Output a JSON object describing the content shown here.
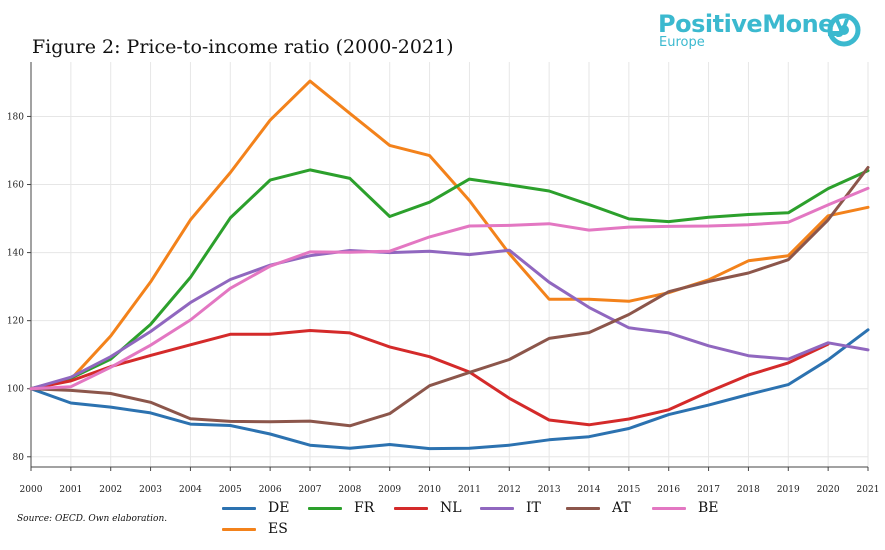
{
  "title": "Figure 2: Price-to-income ratio (2000-2021)",
  "logo": {
    "main": "PositiveMoney",
    "sub": "Europe",
    "color": "#3bb9cf"
  },
  "source": "Source: OECD. Own elaboration.",
  "chart_data": {
    "type": "line",
    "title": "Figure 2: Price-to-income ratio (2000-2021)",
    "xlabel": "",
    "ylabel": "",
    "x": [
      2000,
      2001,
      2002,
      2003,
      2004,
      2005,
      2006,
      2007,
      2008,
      2009,
      2010,
      2011,
      2012,
      2013,
      2014,
      2015,
      2016,
      2017,
      2018,
      2019,
      2020,
      2021
    ],
    "xlim": [
      2000,
      2021
    ],
    "ylim": [
      77,
      196
    ],
    "yticks": [
      80,
      100,
      120,
      140,
      160,
      180
    ],
    "grid": true,
    "legend_position": "bottom",
    "series": [
      {
        "name": "DE",
        "color": "#2c72b0",
        "values": [
          100,
          95.8,
          94.6,
          92.9,
          89.6,
          89.2,
          86.7,
          83.4,
          82.5,
          83.6,
          82.4,
          82.5,
          83.4,
          85.0,
          85.9,
          88.3,
          92.4,
          95.2,
          98.3,
          101.2,
          108.5,
          117.3
        ]
      },
      {
        "name": "ES",
        "color": "#f3821b",
        "values": [
          100,
          102.8,
          115.5,
          131.4,
          149.6,
          163.5,
          178.9,
          190.4,
          180.9,
          171.5,
          168.5,
          155.3,
          139.7,
          126.3,
          126.3,
          125.7,
          128.2,
          132.0,
          137.6,
          139.1,
          150.8,
          153.3
        ]
      },
      {
        "name": "FR",
        "color": "#2ca02c",
        "values": [
          100,
          103.1,
          108.7,
          118.9,
          132.7,
          150.2,
          161.3,
          164.3,
          161.8,
          150.6,
          154.8,
          161.6,
          159.9,
          158.1,
          154.1,
          149.9,
          149.1,
          150.4,
          151.2,
          151.7,
          158.8,
          164.1
        ]
      },
      {
        "name": "NL",
        "color": "#d42a2a",
        "values": [
          100,
          102.3,
          106.5,
          109.8,
          112.9,
          116.0,
          116.0,
          117.1,
          116.4,
          112.3,
          109.4,
          104.9,
          97.2,
          90.8,
          89.4,
          91.1,
          93.8,
          99.1,
          104.0,
          107.6,
          113.1,
          null
        ]
      },
      {
        "name": "IT",
        "color": "#9067bf",
        "values": [
          100,
          103.4,
          109.4,
          116.8,
          125.3,
          132.1,
          136.3,
          139.1,
          140.6,
          140.0,
          140.4,
          139.4,
          140.7,
          131.3,
          123.9,
          117.9,
          116.4,
          112.6,
          109.7,
          108.7,
          113.5,
          111.4
        ]
      },
      {
        "name": "AT",
        "color": "#8c564b",
        "values": [
          100,
          99.5,
          98.6,
          96.0,
          91.2,
          90.4,
          90.3,
          90.5,
          89.1,
          92.7,
          100.9,
          104.8,
          108.6,
          114.8,
          116.5,
          121.8,
          128.5,
          131.5,
          134.0,
          137.9,
          149.6,
          165.0
        ]
      },
      {
        "name": "BE",
        "color": "#e377c2",
        "values": [
          100,
          100.6,
          106.3,
          112.8,
          120.2,
          129.5,
          136.0,
          140.2,
          140.1,
          140.4,
          144.6,
          147.8,
          148.0,
          148.5,
          146.6,
          147.5,
          147.7,
          147.8,
          148.2,
          148.9,
          154.0,
          158.9
        ]
      }
    ]
  }
}
